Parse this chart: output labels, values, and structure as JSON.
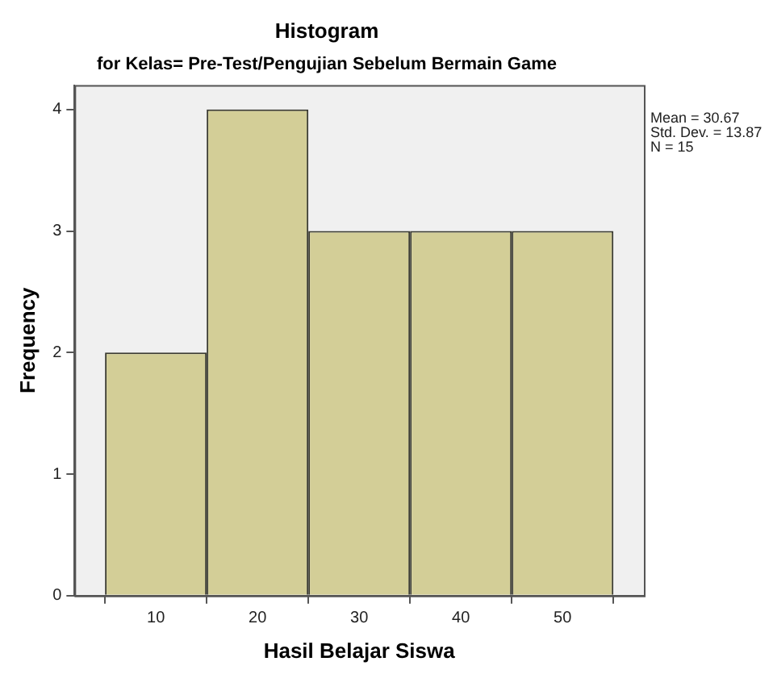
{
  "chart_data": {
    "type": "histogram",
    "title": "Histogram",
    "subtitle": "for Kelas= Pre-Test/Pengujian Sebelum Bermain Game",
    "xlabel": "Hasil Belajar Siswa",
    "ylabel": "Frequency",
    "bins": [
      5,
      15,
      25,
      35,
      45,
      55
    ],
    "values": [
      2,
      4,
      3,
      3,
      3
    ],
    "color": "#d3ce97",
    "xlim": [
      2,
      58
    ],
    "xticks": [
      10,
      20,
      30,
      40,
      50
    ],
    "ylim": [
      0,
      4.2
    ],
    "yticks": [
      0,
      1,
      2,
      3,
      4
    ],
    "grid": false,
    "legend": false,
    "annotations": [
      "Mean = 30.67",
      "Std. Dev. = 13.87",
      "N = 15"
    ]
  }
}
